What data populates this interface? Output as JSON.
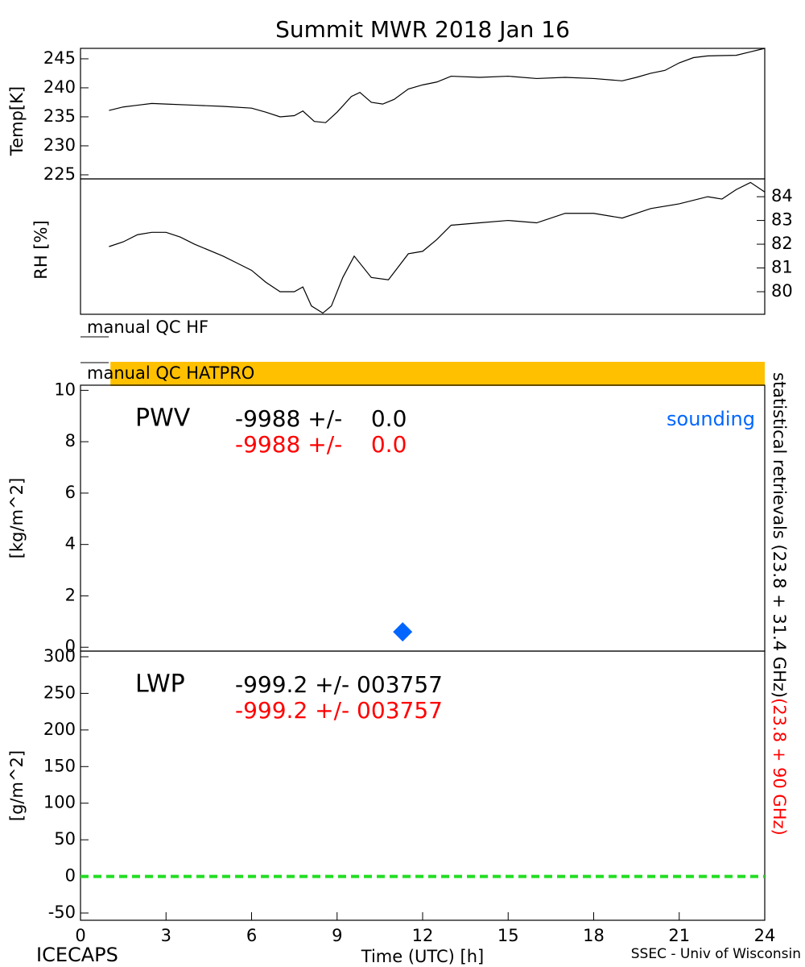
{
  "title": "Summit MWR 2018 Jan 16",
  "footer_left": "ICECAPS",
  "footer_right": "SSEC - Univ of Wisconsin",
  "side_label": {
    "black": "statistical retrievals (23.8 + 31.4 GHz)",
    "red": "(23.8 + 90 GHz)"
  },
  "chart_data": [
    {
      "type": "line",
      "ylabel": "Temp[K]",
      "axis_side": "left",
      "xlim": [
        0,
        24
      ],
      "ylim": [
        224.3,
        246.8
      ],
      "yticks": [
        225,
        230,
        235,
        240,
        245
      ],
      "series": [
        {
          "color": "#000000",
          "x": [
            1,
            1.5,
            2,
            2.5,
            3,
            4,
            5,
            6,
            6.5,
            7,
            7.5,
            7.8,
            8.2,
            8.6,
            9,
            9.5,
            9.8,
            10.2,
            10.6,
            11,
            11.5,
            12,
            12.5,
            13,
            14,
            15,
            16,
            17,
            18,
            19,
            19.5,
            20,
            20.5,
            21,
            21.5,
            22,
            23,
            23.5,
            24
          ],
          "values": [
            236.1,
            236.7,
            237.0,
            237.3,
            237.2,
            237.0,
            236.8,
            236.5,
            235.8,
            235.0,
            235.2,
            236.0,
            234.2,
            234.0,
            235.8,
            238.5,
            239.2,
            237.5,
            237.2,
            238.0,
            239.8,
            240.5,
            241.0,
            242.0,
            241.8,
            242.0,
            241.6,
            241.8,
            241.6,
            241.2,
            241.8,
            242.5,
            243.0,
            244.3,
            245.2,
            245.5,
            245.6,
            246.2,
            246.8
          ]
        }
      ]
    },
    {
      "type": "line",
      "ylabel": "RH [%]",
      "axis_side": "right",
      "xlim": [
        0,
        24
      ],
      "ylim": [
        79.05,
        84.75
      ],
      "yticks": [
        80,
        81,
        82,
        83,
        84
      ],
      "series": [
        {
          "color": "#000000",
          "x": [
            1,
            1.5,
            2,
            2.5,
            3,
            3.5,
            4,
            5,
            5.5,
            6,
            6.5,
            7,
            7.5,
            7.8,
            8.1,
            8.5,
            8.8,
            9.2,
            9.6,
            10.2,
            10.8,
            11.5,
            12,
            12.5,
            13,
            14,
            15,
            16,
            17,
            18,
            19,
            20,
            21,
            22,
            22.5,
            23,
            23.5,
            24
          ],
          "values": [
            81.9,
            82.1,
            82.4,
            82.5,
            82.5,
            82.3,
            82.0,
            81.5,
            81.2,
            80.9,
            80.4,
            80.0,
            80.0,
            80.2,
            79.4,
            79.1,
            79.4,
            80.6,
            81.5,
            80.6,
            80.5,
            81.6,
            81.7,
            82.2,
            82.8,
            82.9,
            83.0,
            82.9,
            83.3,
            83.3,
            83.1,
            83.5,
            83.7,
            84.0,
            83.9,
            84.3,
            84.6,
            84.2
          ]
        }
      ]
    },
    {
      "type": "flags",
      "xlim": [
        0,
        24
      ],
      "flags": [
        {
          "name": "manual QC HF"
        },
        {
          "name": "manual QC HATPRO",
          "color": "#ffc000",
          "x": [
            1.05,
            24
          ]
        }
      ]
    },
    {
      "type": "scatter",
      "ylabel": "[kg/m^2]",
      "axis_side": "left",
      "xlim": [
        0,
        24
      ],
      "ylim": [
        -0.15,
        10.2
      ],
      "yticks": [
        0,
        2,
        4,
        6,
        8,
        10
      ],
      "label": "PWV",
      "readouts": [
        {
          "text": "-9988 +/-    0.0",
          "color": "#000000"
        },
        {
          "text": "-9988 +/-    0.0",
          "color": "#ff0000"
        }
      ],
      "series": [
        {
          "name": "sounding",
          "color": "#0066ff",
          "x": [
            11.3
          ],
          "values": [
            0.6
          ]
        }
      ]
    },
    {
      "type": "line",
      "ylabel": "[g/m^2]",
      "axis_side": "left",
      "xlim": [
        0,
        24
      ],
      "ylim": [
        -59.9,
        307.7
      ],
      "yticks": [
        -50,
        0,
        50,
        100,
        150,
        200,
        250,
        300
      ],
      "xticks": [
        0,
        3,
        6,
        9,
        12,
        15,
        18,
        21,
        24
      ],
      "xlabel": "Time (UTC) [h]",
      "label": "LWP",
      "readouts": [
        {
          "text": "-999.2 +/- 003757",
          "color": "#000000"
        },
        {
          "text": "-999.2 +/- 003757",
          "color": "#ff0000"
        }
      ],
      "series": [
        {
          "color": "#22dd22",
          "dash": true,
          "x": [
            0,
            24
          ],
          "values": [
            0,
            0
          ]
        }
      ]
    }
  ]
}
